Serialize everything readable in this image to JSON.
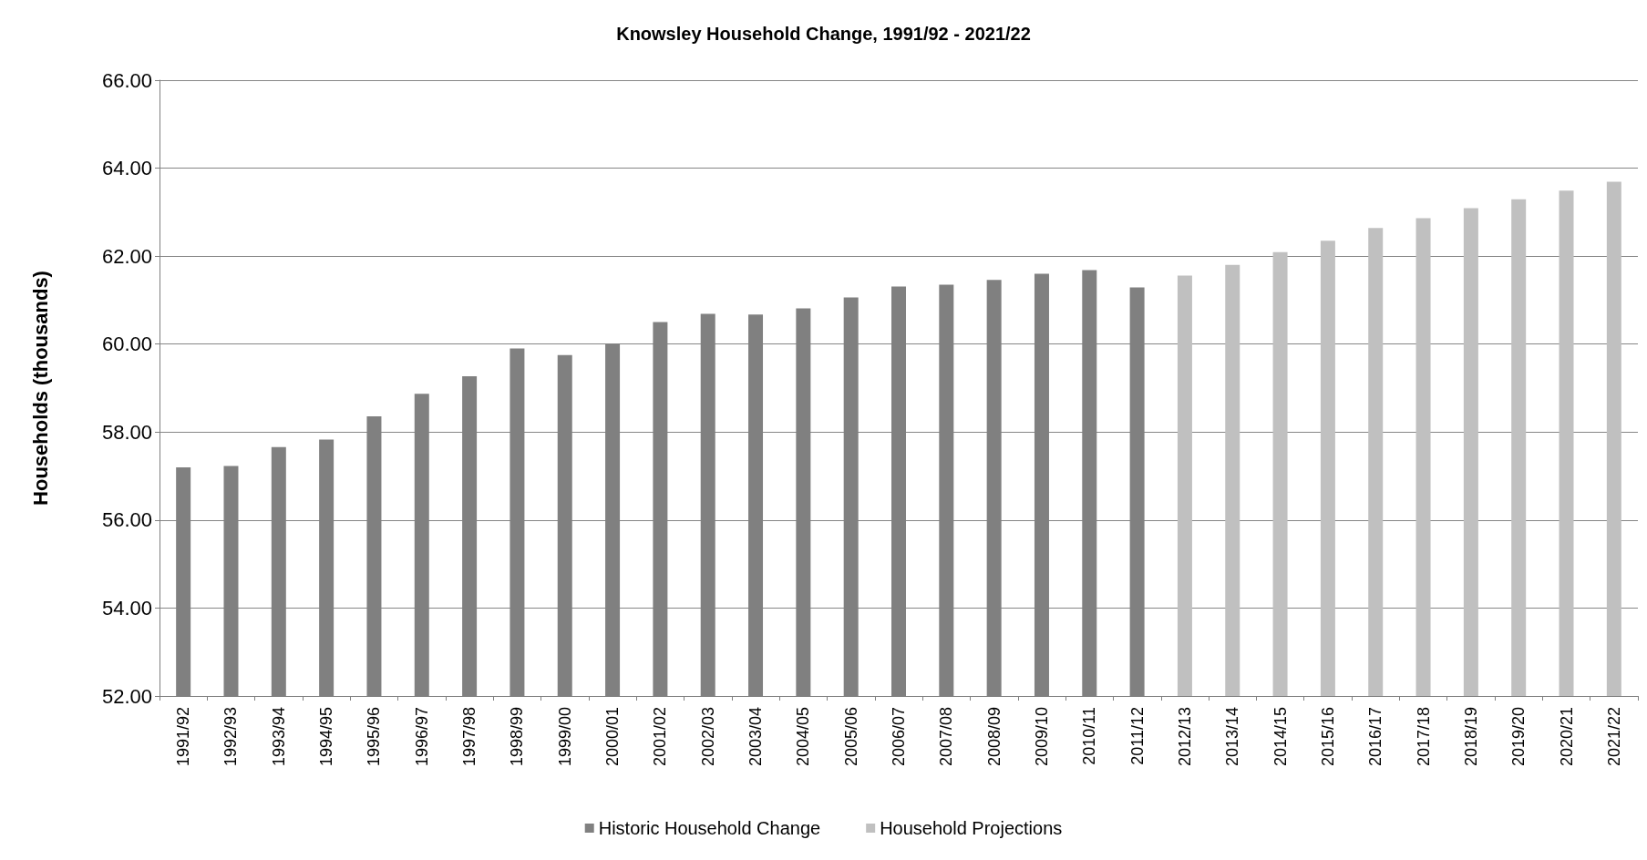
{
  "chart_data": {
    "type": "bar",
    "title": "Knowsley Household Change, 1991/92 - 2021/22",
    "ylabel": "Households (thousands)",
    "categories": [
      "1991/92",
      "1992/93",
      "1993/94",
      "1994/95",
      "1995/96",
      "1996/97",
      "1997/98",
      "1998/99",
      "1999/00",
      "2000/01",
      "2001/02",
      "2002/03",
      "2003/04",
      "2004/05",
      "2005/06",
      "2006/07",
      "2007/08",
      "2008/09",
      "2009/10",
      "2010/11",
      "2011/12",
      "2012/13",
      "2013/14",
      "2014/15",
      "2015/16",
      "2016/17",
      "2017/18",
      "2018/19",
      "2019/20",
      "2020/21",
      "2021/22"
    ],
    "series": [
      {
        "name": "Historic Household Change",
        "color": "#808080",
        "values": [
          57.2,
          57.23,
          57.66,
          57.83,
          58.36,
          58.87,
          59.27,
          59.9,
          59.75,
          60.0,
          60.5,
          60.69,
          60.67,
          60.81,
          61.06,
          61.31,
          61.35,
          61.46,
          61.6,
          61.68,
          61.29,
          null,
          null,
          null,
          null,
          null,
          null,
          null,
          null,
          null,
          null
        ]
      },
      {
        "name": "Household Projections",
        "color": "#c0c0c0",
        "values": [
          null,
          null,
          null,
          null,
          null,
          null,
          null,
          null,
          null,
          null,
          null,
          null,
          null,
          null,
          null,
          null,
          null,
          null,
          null,
          null,
          null,
          61.56,
          61.8,
          62.09,
          62.35,
          62.64,
          62.86,
          63.09,
          63.29,
          63.49,
          63.69
        ]
      }
    ],
    "ylim": [
      52,
      66
    ],
    "yticks": [
      {
        "value": 52,
        "label": "52.00"
      },
      {
        "value": 54,
        "label": "54.00"
      },
      {
        "value": 56,
        "label": "56.00"
      },
      {
        "value": 58,
        "label": "58.00"
      },
      {
        "value": 60,
        "label": "60.00"
      },
      {
        "value": 62,
        "label": "62.00"
      },
      {
        "value": 64,
        "label": "64.00"
      },
      {
        "value": 66,
        "label": "66.00"
      }
    ],
    "grid": "y",
    "legend": "bottom"
  }
}
